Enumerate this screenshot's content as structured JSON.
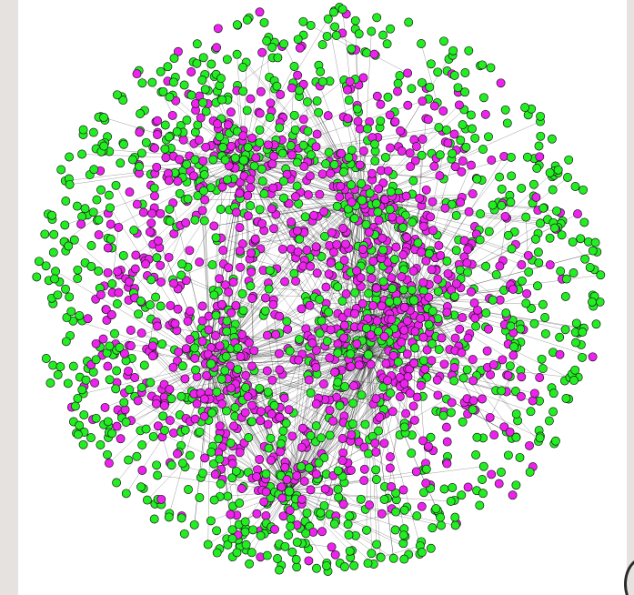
{
  "network": {
    "node_colors": {
      "green": "#22ee22",
      "magenta": "#ee22ee",
      "outline": "#1a1a1a",
      "edge": "#000000"
    },
    "hubs": [
      {
        "name": "hub-upper-left",
        "color": "green"
      },
      {
        "name": "hub-upper-center",
        "color": "green"
      },
      {
        "name": "hub-center-right",
        "color": "green"
      },
      {
        "name": "hub-middle",
        "color": "green"
      },
      {
        "name": "hub-left",
        "color": "green"
      },
      {
        "name": "hub-bottom",
        "color": "green"
      }
    ]
  }
}
